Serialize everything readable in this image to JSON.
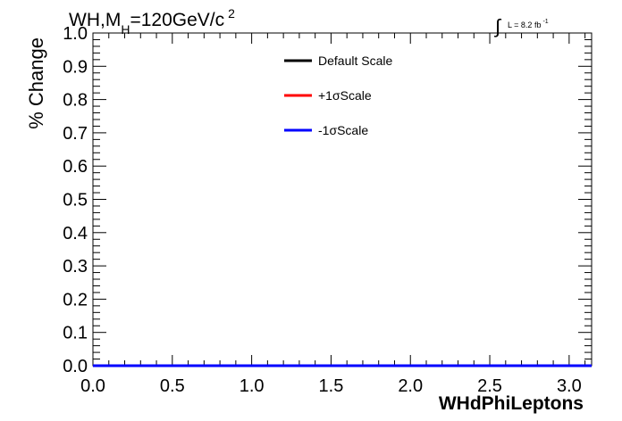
{
  "chart_data": {
    "type": "line",
    "title": "WH,M",
    "title_subscript": "H",
    "title_suffix": "=120GeV/c",
    "title_superscript": "2",
    "luminosity": {
      "integral_symbol": "∫",
      "text": "L = 8.2 fb",
      "superscript": "-1"
    },
    "xlabel": "WHdPhiLeptons",
    "ylabel": "% Change",
    "xlim": [
      0,
      3.14159
    ],
    "ylim": [
      0,
      1.0
    ],
    "x_ticks": [
      "0.0",
      "0.5",
      "1.0",
      "1.5",
      "2.0",
      "2.5",
      "3.0"
    ],
    "x_tick_values": [
      0,
      0.5,
      1.0,
      1.5,
      2.0,
      2.5,
      3.0
    ],
    "y_ticks": [
      "0.0",
      "0.1",
      "0.2",
      "0.3",
      "0.4",
      "0.5",
      "0.6",
      "0.7",
      "0.8",
      "0.9",
      "1.0"
    ],
    "y_tick_values": [
      0,
      0.1,
      0.2,
      0.3,
      0.4,
      0.5,
      0.6,
      0.7,
      0.8,
      0.9,
      1.0
    ],
    "grid": false,
    "legend_position": "top-center",
    "series": [
      {
        "name": "Default Scale",
        "color": "#000000",
        "x": [
          0,
          3.14159
        ],
        "y": [
          0,
          0
        ]
      },
      {
        "name": "+1σScale",
        "color": "#ff0000",
        "x": [
          0,
          3.14159
        ],
        "y": [
          0,
          0
        ]
      },
      {
        "name": "-1σScale",
        "color": "#0000ff",
        "x": [
          0,
          3.14159
        ],
        "y": [
          0,
          0
        ]
      }
    ]
  }
}
